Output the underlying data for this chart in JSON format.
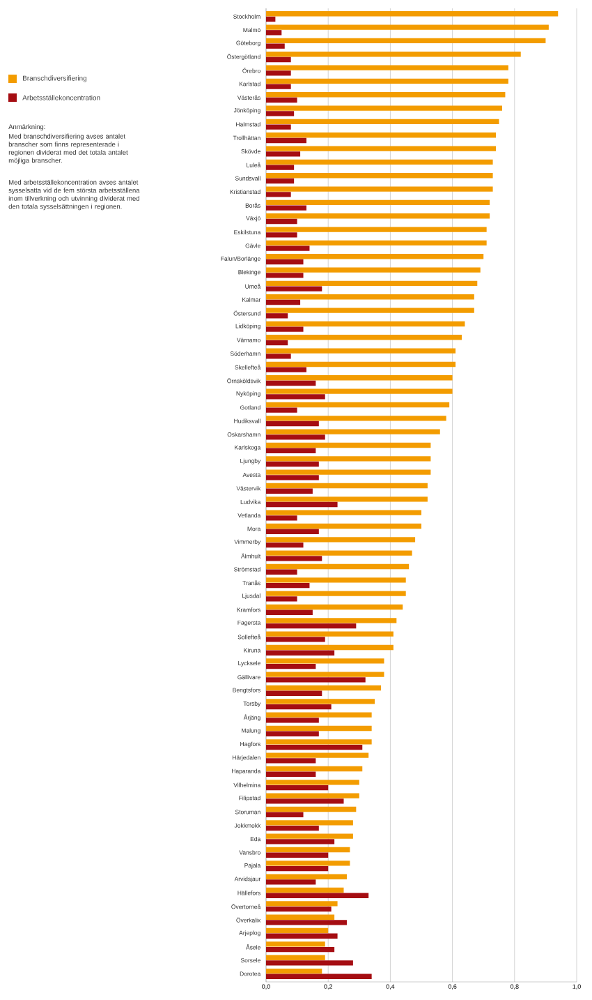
{
  "chart_data": {
    "type": "bar",
    "orientation": "horizontal",
    "categories": [
      "Stockholm",
      "Malmö",
      "Göteborg",
      "Östergötland",
      "Örebro",
      "Karlstad",
      "Västerås",
      "Jönköping",
      "Halmstad",
      "Trollhättan",
      "Skövde",
      "Luleå",
      "Sundsvall",
      "Kristianstad",
      "Borås",
      "Växjö",
      "Eskilstuna",
      "Gävle",
      "Falun/Borlänge",
      "Blekinge",
      "Umeå",
      "Kalmar",
      "Östersund",
      "Lidköping",
      "Värnamo",
      "Söderhamn",
      "Skellefteå",
      "Örnsköldsvik",
      "Nyköping",
      "Gotland",
      "Hudiksvall",
      "Oskarshamn",
      "Karlskoga",
      "Ljungby",
      "Avesta",
      "Västervik",
      "Ludvika",
      "Vetlanda",
      "Mora",
      "Vimmerby",
      "Älmhult",
      "Strömstad",
      "Tranås",
      "Ljusdal",
      "Kramfors",
      "Fagersta",
      "Sollefteå",
      "Kiruna",
      "Lycksele",
      "Gällivare",
      "Bengtsfors",
      "Torsby",
      "Årjäng",
      "Malung",
      "Hagfors",
      "Härjedalen",
      "Haparanda",
      "Vilhelmina",
      "Filipstad",
      "Storuman",
      "Jokkmokk",
      "Eda",
      "Vansbro",
      "Pajala",
      "Arvidsjaur",
      "Hällefors",
      "Övertorneå",
      "Överkalix",
      "Arjeplog",
      "Åsele",
      "Sorsele",
      "Dorotea"
    ],
    "series": [
      {
        "name": "Branschdiversifiering",
        "color": "#f39c00",
        "values": [
          0.94,
          0.91,
          0.9,
          0.82,
          0.78,
          0.78,
          0.77,
          0.76,
          0.75,
          0.74,
          0.74,
          0.73,
          0.73,
          0.73,
          0.72,
          0.72,
          0.71,
          0.71,
          0.7,
          0.69,
          0.68,
          0.67,
          0.67,
          0.64,
          0.63,
          0.61,
          0.61,
          0.6,
          0.6,
          0.59,
          0.58,
          0.56,
          0.53,
          0.53,
          0.53,
          0.52,
          0.52,
          0.5,
          0.5,
          0.48,
          0.47,
          0.46,
          0.45,
          0.45,
          0.44,
          0.42,
          0.41,
          0.41,
          0.38,
          0.38,
          0.37,
          0.35,
          0.34,
          0.34,
          0.34,
          0.33,
          0.31,
          0.3,
          0.3,
          0.29,
          0.28,
          0.28,
          0.27,
          0.27,
          0.26,
          0.25,
          0.23,
          0.22,
          0.2,
          0.19,
          0.19,
          0.18
        ]
      },
      {
        "name": "Arbetsställekoncentration",
        "color": "#a50d12",
        "values": [
          0.03,
          0.05,
          0.06,
          0.08,
          0.08,
          0.08,
          0.1,
          0.09,
          0.08,
          0.13,
          0.11,
          0.09,
          0.09,
          0.08,
          0.13,
          0.1,
          0.1,
          0.14,
          0.12,
          0.12,
          0.18,
          0.11,
          0.07,
          0.12,
          0.07,
          0.08,
          0.13,
          0.16,
          0.19,
          0.1,
          0.17,
          0.19,
          0.16,
          0.17,
          0.17,
          0.15,
          0.23,
          0.1,
          0.17,
          0.12,
          0.18,
          0.1,
          0.14,
          0.1,
          0.15,
          0.29,
          0.19,
          0.22,
          0.16,
          0.32,
          0.18,
          0.21,
          0.17,
          0.17,
          0.31,
          0.16,
          0.16,
          0.2,
          0.25,
          0.12,
          0.17,
          0.22,
          0.2,
          0.2,
          0.16,
          0.33,
          0.21,
          0.26,
          0.23,
          0.22,
          0.28,
          0.34
        ]
      }
    ],
    "xlim": [
      0,
      1
    ],
    "xticks": [
      {
        "value": 0,
        "label": "0,0"
      },
      {
        "value": 0.2,
        "label": "0,2"
      },
      {
        "value": 0.4,
        "label": "0,4"
      },
      {
        "value": 0.6,
        "label": "0,6"
      },
      {
        "value": 0.8,
        "label": "0,8"
      },
      {
        "value": 1,
        "label": "1,0"
      }
    ],
    "grid": "x",
    "legend": "top left",
    "annotations": [
      "Anmärkning:",
      "Med branschdiversifiering avses antalet branscher som finns representerade i regionen dividerat med det totala antalet möjliga branscher.",
      "Med arbetsställekoncentration avses antalet sysselsatta vid de fem största arbetsställena inom tillverkning och utvinning dividerat med den totala sysselsättningen i regionen."
    ]
  }
}
